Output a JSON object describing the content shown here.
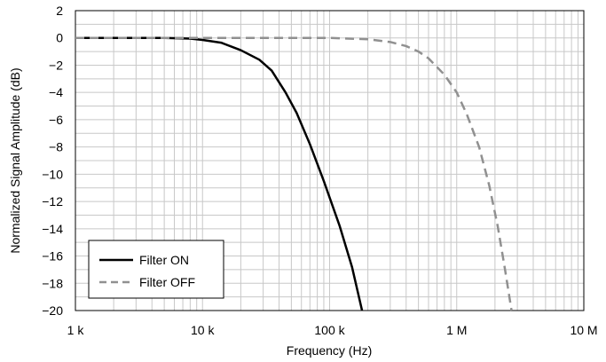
{
  "chart_data": {
    "type": "line",
    "xlabel": "Frequency (Hz)",
    "ylabel": "Normalized Signal Amplitude (dB)",
    "x_scale": "log",
    "xlim": [
      1000,
      10000000
    ],
    "ylim": [
      -20,
      2
    ],
    "grid": true,
    "legend_position": "bottom-left",
    "x_ticks": [
      {
        "value": 1000,
        "label": "1 k"
      },
      {
        "value": 10000,
        "label": "10 k"
      },
      {
        "value": 100000,
        "label": "100 k"
      },
      {
        "value": 1000000,
        "label": "1 M"
      },
      {
        "value": 10000000,
        "label": "10 M"
      }
    ],
    "y_ticks": [
      {
        "value": 2,
        "label": "2"
      },
      {
        "value": 0,
        "label": "0"
      },
      {
        "value": -2,
        "label": "−2"
      },
      {
        "value": -4,
        "label": "−4"
      },
      {
        "value": -6,
        "label": "−6"
      },
      {
        "value": -8,
        "label": "−8"
      },
      {
        "value": -10,
        "label": "−10"
      },
      {
        "value": -12,
        "label": "−12"
      },
      {
        "value": -14,
        "label": "−14"
      },
      {
        "value": -16,
        "label": "−16"
      },
      {
        "value": -18,
        "label": "−18"
      },
      {
        "value": -20,
        "label": "−20"
      }
    ],
    "series": [
      {
        "name": "Filter ON",
        "color": "#000000",
        "dash": "solid",
        "x": [
          1000,
          3000,
          5000,
          8000,
          10000,
          14000,
          20000,
          28000,
          35000,
          45000,
          55000,
          70000,
          90000,
          120000,
          150000,
          180000
        ],
        "y": [
          0,
          0,
          0,
          -0.05,
          -0.15,
          -0.35,
          -0.9,
          -1.6,
          -2.4,
          -4.0,
          -5.5,
          -7.8,
          -10.5,
          -13.8,
          -16.8,
          -20
        ]
      },
      {
        "name": "Filter OFF",
        "color": "#909090",
        "dash": "dashed",
        "x": [
          1000,
          10000,
          50000,
          100000,
          200000,
          300000,
          400000,
          500000,
          600000,
          800000,
          1000000,
          1200000,
          1500000,
          1800000,
          2100000,
          2400000,
          2700000
        ],
        "y": [
          0,
          0,
          0,
          0,
          -0.1,
          -0.3,
          -0.6,
          -1.0,
          -1.5,
          -2.7,
          -4.0,
          -5.6,
          -8.0,
          -10.8,
          -13.8,
          -17.0,
          -20
        ]
      }
    ]
  }
}
